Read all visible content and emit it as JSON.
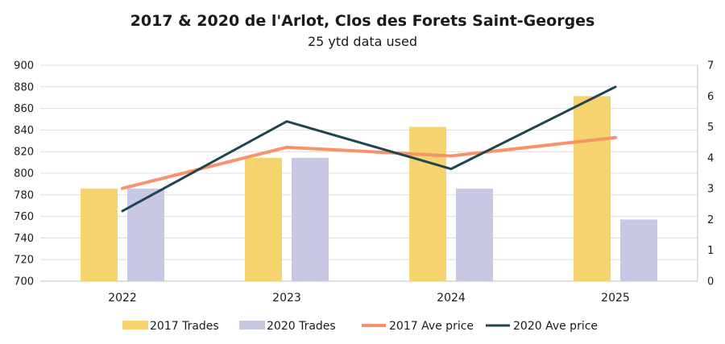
{
  "chart_data": {
    "type": "bar",
    "title": "2017 & 2020 de l'Arlot, Clos des Forets Saint-Georges",
    "subtitle": "25 ytd data used",
    "categories": [
      "2022",
      "2023",
      "2024",
      "2025"
    ],
    "y_left": {
      "min": 700,
      "max": 900,
      "step": 20,
      "ticks": [
        "700",
        "720",
        "740",
        "760",
        "780",
        "800",
        "820",
        "840",
        "860",
        "880",
        "900"
      ]
    },
    "y_right": {
      "min": 0,
      "max": 7,
      "step": 1,
      "ticks": [
        "0",
        "1",
        "2",
        "3",
        "4",
        "5",
        "6",
        "7"
      ]
    },
    "grid": true,
    "legend_position": "bottom",
    "series": [
      {
        "name": "2017 Trades",
        "kind": "bar",
        "axis": "right",
        "color": "#F5D36E",
        "values": [
          3,
          4,
          5,
          6
        ]
      },
      {
        "name": "2020 Trades",
        "kind": "bar",
        "axis": "right",
        "color": "#C9C8E4",
        "values": [
          3,
          4,
          3,
          2
        ]
      },
      {
        "name": "2017 Ave price",
        "kind": "line",
        "axis": "left",
        "color": "#F7936A",
        "values": [
          786,
          824,
          816,
          833
        ]
      },
      {
        "name": "2020 Ave price",
        "kind": "line",
        "axis": "left",
        "color": "#1F4650",
        "values": [
          765,
          848,
          804,
          880
        ]
      }
    ]
  }
}
